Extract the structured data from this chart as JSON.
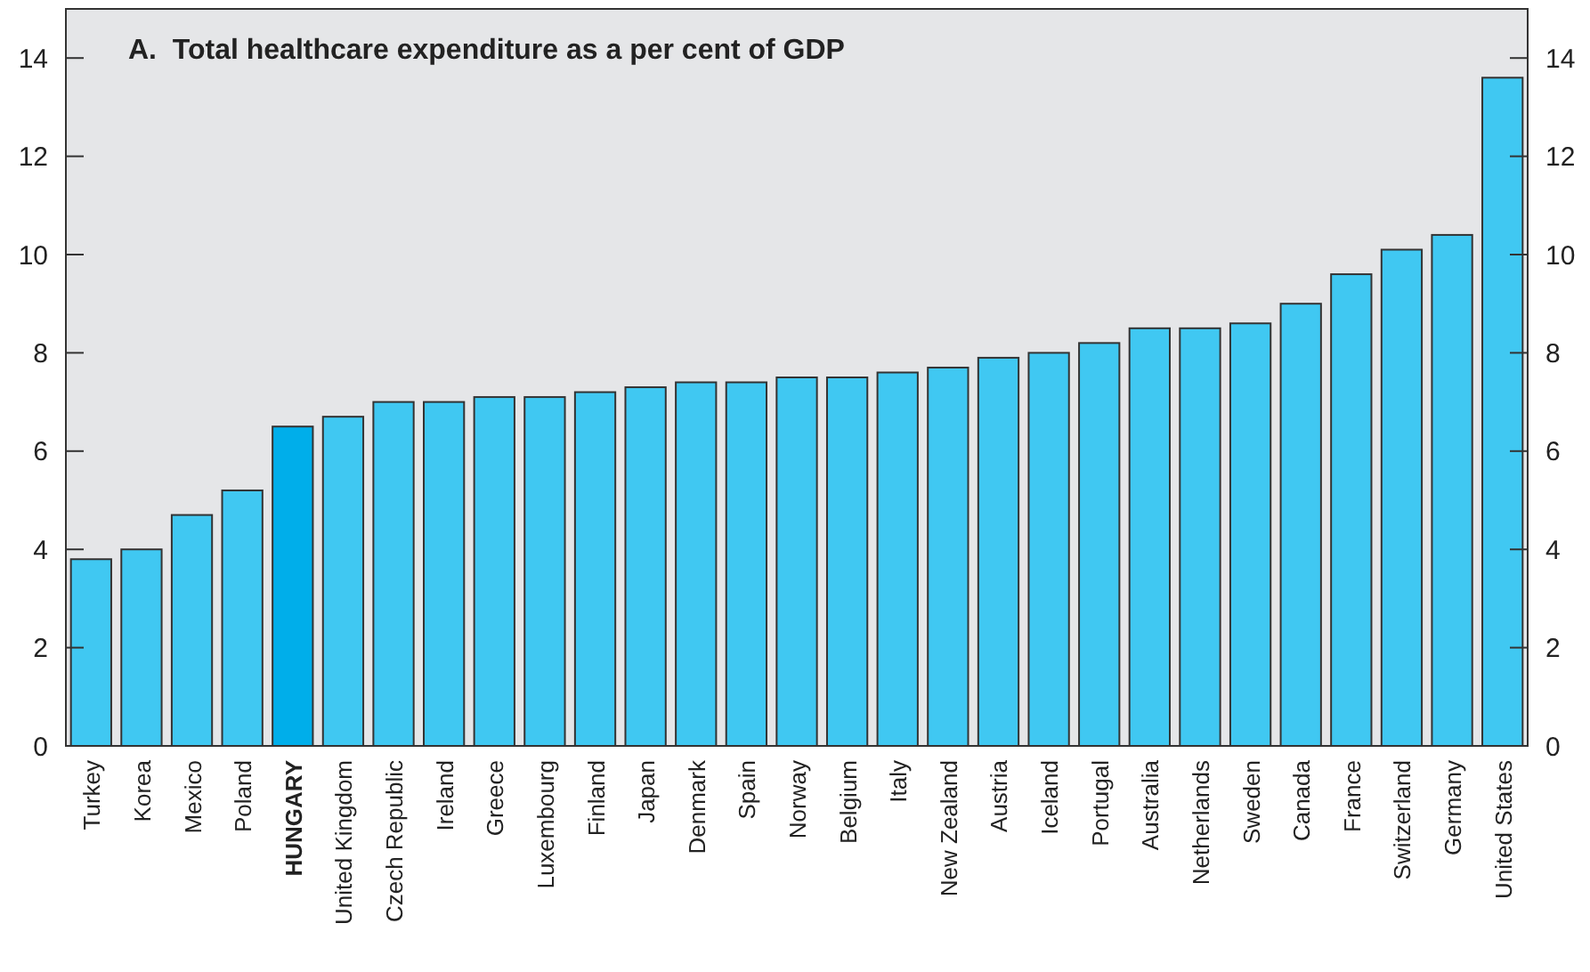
{
  "chart_data": {
    "type": "bar",
    "title": "A.  Total healthcare expenditure as a per cent of GDP",
    "categories": [
      "Turkey",
      "Korea",
      "Mexico",
      "Poland",
      "HUNGARY",
      "United Kingdom",
      "Czech Republic",
      "Ireland",
      "Greece",
      "Luxembourg",
      "Finland",
      "Japan",
      "Denmark",
      "Spain",
      "Norway",
      "Belgium",
      "Italy",
      "New Zealand",
      "Austria",
      "Iceland",
      "Portugal",
      "Australia",
      "Netherlands",
      "Sweden",
      "Canada",
      "France",
      "Switzerland",
      "Germany",
      "United States"
    ],
    "values": [
      3.8,
      4.0,
      4.7,
      5.2,
      6.5,
      6.7,
      7.0,
      7.0,
      7.1,
      7.1,
      7.2,
      7.3,
      7.4,
      7.4,
      7.5,
      7.5,
      7.6,
      7.7,
      7.9,
      8.0,
      8.2,
      8.5,
      8.5,
      8.6,
      9.0,
      9.6,
      10.1,
      10.4,
      13.6
    ],
    "colors": [
      "#40c8f2",
      "#40c8f2",
      "#40c8f2",
      "#40c8f2",
      "#00aeea",
      "#40c8f2",
      "#40c8f2",
      "#40c8f2",
      "#40c8f2",
      "#40c8f2",
      "#40c8f2",
      "#40c8f2",
      "#40c8f2",
      "#40c8f2",
      "#40c8f2",
      "#40c8f2",
      "#40c8f2",
      "#40c8f2",
      "#40c8f2",
      "#40c8f2",
      "#40c8f2",
      "#40c8f2",
      "#40c8f2",
      "#40c8f2",
      "#40c8f2",
      "#40c8f2",
      "#40c8f2",
      "#40c8f2",
      "#40c8f2"
    ],
    "ylim": [
      0,
      15
    ],
    "yticks": [
      0,
      2,
      4,
      6,
      8,
      10,
      12,
      14
    ],
    "y2lim": [
      0,
      15
    ],
    "y2ticks": [
      0,
      2,
      4,
      6,
      8,
      10,
      12,
      14
    ],
    "grid": false
  }
}
